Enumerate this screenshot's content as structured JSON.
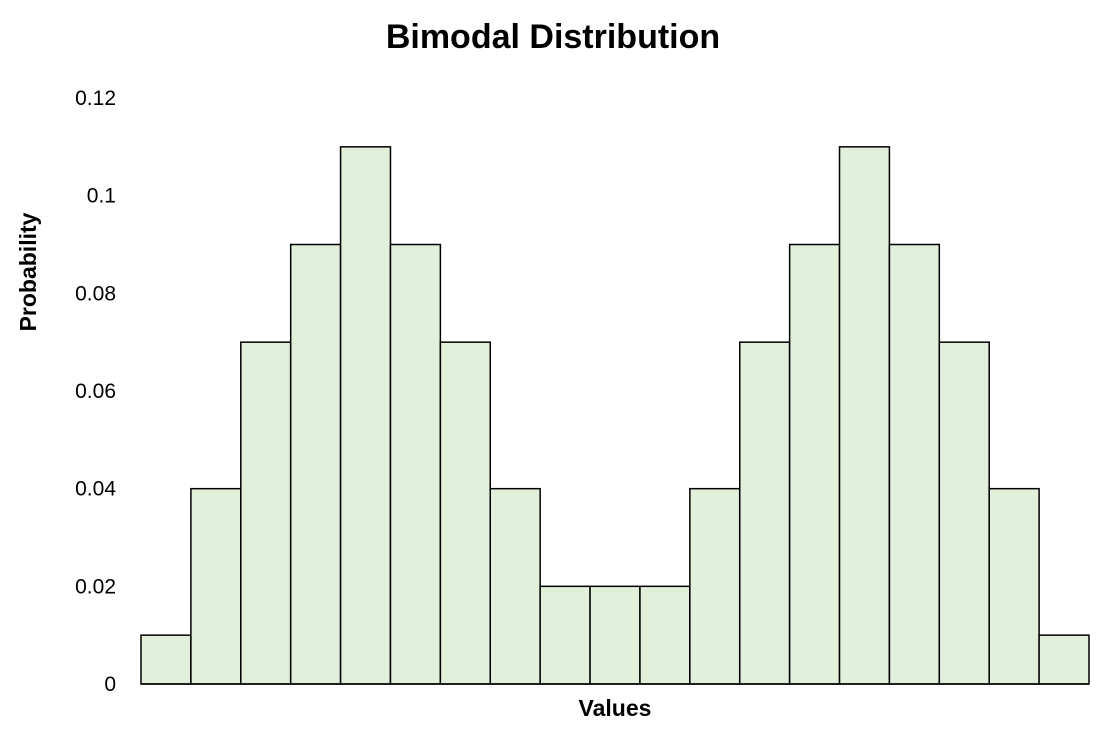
{
  "chart_data": {
    "type": "bar",
    "title": "Bimodal Distribution",
    "xlabel": "Values",
    "ylabel": "Probability",
    "ylim": [
      0,
      0.12
    ],
    "yticks": [
      {
        "value": 0,
        "label": "0"
      },
      {
        "value": 0.02,
        "label": "0.02"
      },
      {
        "value": 0.04,
        "label": "0.04"
      },
      {
        "value": 0.06,
        "label": "0.06"
      },
      {
        "value": 0.08,
        "label": "0.08"
      },
      {
        "value": 0.1,
        "label": "0.1"
      },
      {
        "value": 0.12,
        "label": "0.12"
      }
    ],
    "values": [
      0.01,
      0.04,
      0.07,
      0.09,
      0.11,
      0.09,
      0.07,
      0.04,
      0.02,
      0.02,
      0.02,
      0.04,
      0.07,
      0.09,
      0.11,
      0.09,
      0.07,
      0.04,
      0.01
    ],
    "grid": false,
    "legend": "none",
    "colors": {
      "bar_fill": "#e2efda",
      "bar_stroke": "#000000",
      "axis": "#000000"
    }
  }
}
